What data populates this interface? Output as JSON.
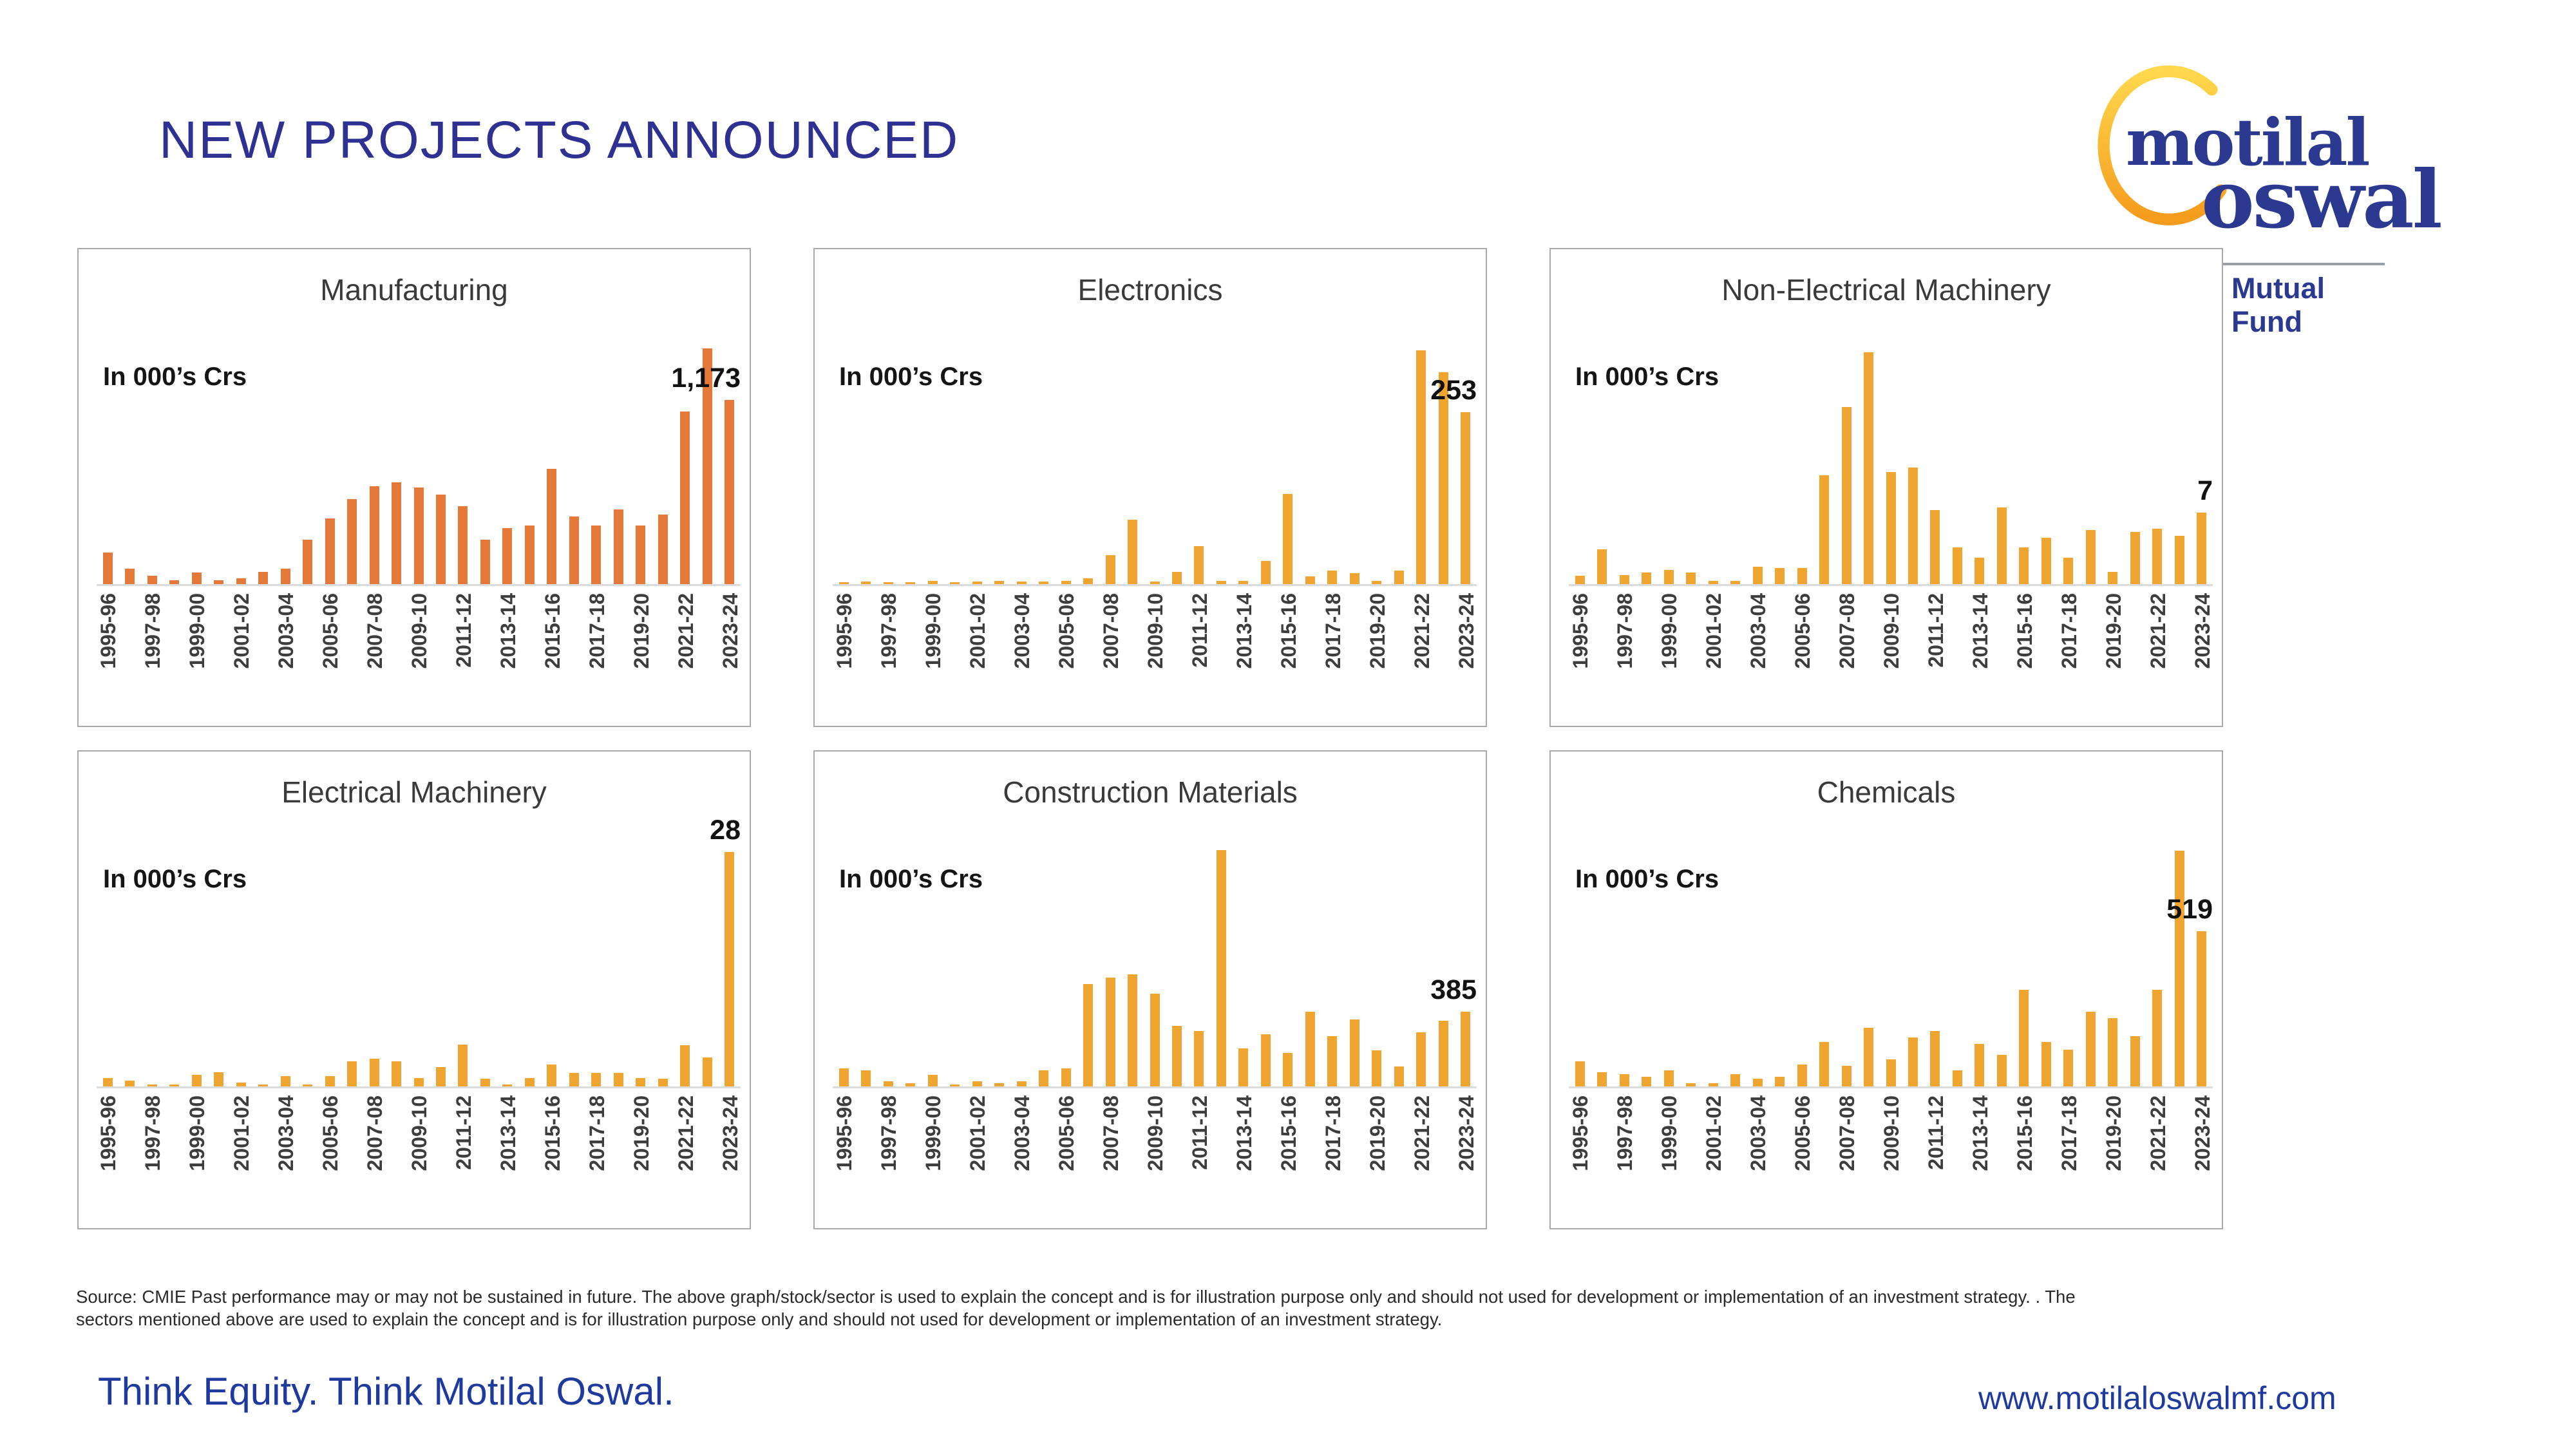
{
  "page": {
    "title": "NEW PROJECTS ANNOUNCED",
    "tagline": "Think Equity. Think Motilal Oswal.",
    "website": "www.motilaloswalmf.com",
    "source_note_line1": "Source: CMIE Past performance may or may not be sustained in future. The above graph/stock/sector is used to explain the concept and is for illustration purpose only and should not used for development or implementation of an investment strategy. . The",
    "source_note_line2": "sectors mentioned above are used to explain the concept and is for illustration purpose only and should not used for development or implementation of an investment strategy."
  },
  "logo": {
    "word1": "motilal",
    "word2": "oswal",
    "subtitle": "Mutual Fund",
    "arc_color_top": "#ffd84d",
    "arc_color_bottom": "#f59b1e",
    "navy": "#2b3990"
  },
  "colors": {
    "brand_navy": "#2e3192",
    "footer_blue": "#1f3a9e",
    "orange_bar": "#e4793a",
    "gold_bar": "#f0a530",
    "panel_border": "#a9a9a9",
    "axis_gray": "#dcdcdc"
  },
  "categories": [
    "1995-96",
    "1996-97",
    "1997-98",
    "1998-99",
    "1999-00",
    "2000-01",
    "2001-02",
    "2002-03",
    "2003-04",
    "2004-05",
    "2005-06",
    "2006-07",
    "2007-08",
    "2008-09",
    "2009-10",
    "2010-11",
    "2011-12",
    "2012-13",
    "2013-14",
    "2014-15",
    "2015-16",
    "2016-17",
    "2017-18",
    "2018-19",
    "2019-20",
    "2020-21",
    "2021-22",
    "2022-23",
    "2023-24"
  ],
  "chart_data": [
    {
      "type": "bar",
      "title": "Manufacturing",
      "unit_label": "In 000’s Crs",
      "last_value_label": "1,173",
      "bar_color": "#e4793a",
      "ymax": 1600,
      "ylim": [
        0,
        1600
      ],
      "grid": false,
      "values": [
        200,
        100,
        55,
        25,
        75,
        25,
        35,
        80,
        100,
        285,
        420,
        540,
        625,
        650,
        615,
        570,
        495,
        285,
        355,
        375,
        735,
        430,
        375,
        475,
        375,
        445,
        1100,
        1500,
        1173
      ]
    },
    {
      "type": "bar",
      "title": "Electronics",
      "unit_label": "In 000’s Crs",
      "last_value_label": "253",
      "bar_color": "#f0a530",
      "ymax": 370,
      "ylim": [
        0,
        370
      ],
      "grid": false,
      "values": [
        3,
        4,
        3,
        3,
        5,
        3,
        4,
        5,
        4,
        4,
        5,
        9,
        43,
        95,
        4,
        18,
        56,
        5,
        5,
        34,
        133,
        11,
        20,
        16,
        5,
        20,
        344,
        312,
        253
      ]
    },
    {
      "type": "bar",
      "title": "Non-Electrical Machinery",
      "unit_label": "In 000’s Crs",
      "last_value_label": "7",
      "bar_color": "#f0a530",
      "ymax": 24.5,
      "ylim": [
        0,
        24.5
      ],
      "grid": false,
      "values": [
        0.8,
        3.4,
        0.9,
        1.1,
        1.4,
        1.1,
        0.3,
        0.3,
        1.7,
        1.6,
        1.6,
        10.6,
        17.3,
        22.6,
        10.9,
        11.4,
        7.2,
        3.6,
        2.6,
        7.5,
        3.6,
        4.5,
        2.6,
        5.3,
        1.2,
        5.1,
        5.4,
        4.7,
        7
      ]
    },
    {
      "type": "bar",
      "title": "Electrical Machinery",
      "unit_label": "In 000’s Crs",
      "last_value_label": "28",
      "bar_color": "#f0a530",
      "ymax": 30,
      "ylim": [
        0,
        30
      ],
      "grid": false,
      "values": [
        1,
        0.7,
        0.2,
        0.2,
        1.4,
        1.7,
        0.5,
        0.2,
        1.2,
        0.2,
        1.2,
        3,
        3.3,
        3,
        1,
        2.3,
        5,
        0.9,
        0.2,
        1,
        2.6,
        1.6,
        1.6,
        1.6,
        1,
        0.9,
        4.9,
        3.5,
        28
      ]
    },
    {
      "type": "bar",
      "title": "Construction Materials",
      "unit_label": "In 000’s Crs",
      "last_value_label": "385",
      "bar_color": "#f0a530",
      "ymax": 1290,
      "ylim": [
        0,
        1290
      ],
      "grid": false,
      "values": [
        92,
        84,
        25,
        17,
        59,
        8,
        25,
        17,
        25,
        84,
        92,
        527,
        560,
        577,
        477,
        310,
        284,
        1213,
        195,
        267,
        171,
        384,
        259,
        345,
        184,
        101,
        278,
        338,
        385
      ]
    },
    {
      "type": "bar",
      "title": "Chemicals",
      "unit_label": "In 000’s Crs",
      "last_value_label": "519",
      "bar_color": "#f0a530",
      "ymax": 840,
      "ylim": [
        0,
        840
      ],
      "grid": false,
      "values": [
        85,
        48,
        42,
        32,
        53,
        11,
        11,
        42,
        26,
        32,
        74,
        148,
        69,
        196,
        90,
        164,
        185,
        53,
        143,
        106,
        323,
        148,
        122,
        249,
        228,
        169,
        323,
        789,
        519
      ]
    }
  ]
}
